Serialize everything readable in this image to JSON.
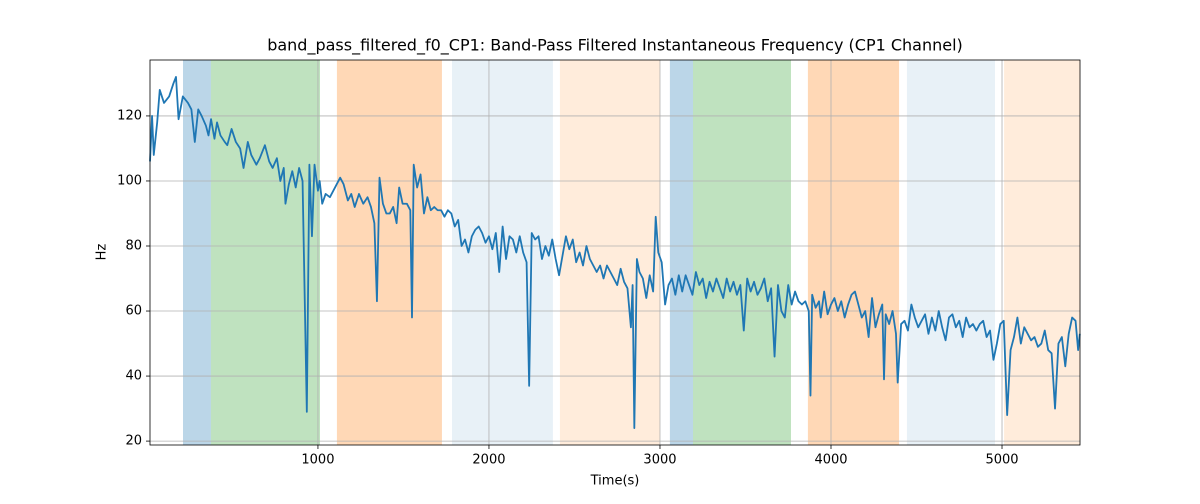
{
  "chart_data": {
    "type": "line",
    "title": "band_pass_filtered_f0_CP1: Band-Pass Filtered Instantaneous Frequency (CP1 Channel)",
    "xlabel": "Time(s)",
    "ylabel": "Hz",
    "xlim": [
      18,
      5456
    ],
    "ylim": [
      18.8,
      137.2
    ],
    "xticks": [
      1000,
      2000,
      3000,
      4000,
      5000
    ],
    "yticks": [
      20,
      40,
      60,
      80,
      100,
      120
    ],
    "grid": true,
    "color": "#1f77b4",
    "spans": [
      {
        "start": 211,
        "end": 374,
        "color": "#1f77b4",
        "opacity": 0.3
      },
      {
        "start": 374,
        "end": 1012,
        "color": "#2ca02c",
        "opacity": 0.3
      },
      {
        "start": 1111,
        "end": 1725,
        "color": "#ff7f0e",
        "opacity": 0.3
      },
      {
        "start": 1784,
        "end": 2374,
        "color": "#1f77b4",
        "opacity": 0.1
      },
      {
        "start": 2415,
        "end": 3000,
        "color": "#ff7f0e",
        "opacity": 0.15
      },
      {
        "start": 3058,
        "end": 3193,
        "color": "#1f77b4",
        "opacity": 0.3
      },
      {
        "start": 3193,
        "end": 3766,
        "color": "#2ca02c",
        "opacity": 0.3
      },
      {
        "start": 3865,
        "end": 4398,
        "color": "#ff7f0e",
        "opacity": 0.3
      },
      {
        "start": 4444,
        "end": 4959,
        "color": "#1f77b4",
        "opacity": 0.1
      },
      {
        "start": 5012,
        "end": 5456,
        "color": "#ff7f0e",
        "opacity": 0.15
      }
    ],
    "x": [
      18,
      30,
      40,
      60,
      75,
      100,
      130,
      155,
      170,
      185,
      210,
      240,
      260,
      280,
      300,
      320,
      345,
      360,
      375,
      395,
      410,
      430,
      455,
      470,
      495,
      520,
      545,
      565,
      590,
      610,
      640,
      660,
      690,
      715,
      735,
      760,
      780,
      800,
      810,
      830,
      850,
      870,
      890,
      910,
      935,
      950,
      965,
      980,
      1000,
      1010,
      1025,
      1045,
      1070,
      1090,
      1110,
      1130,
      1150,
      1175,
      1195,
      1215,
      1240,
      1265,
      1290,
      1310,
      1330,
      1345,
      1360,
      1380,
      1400,
      1420,
      1440,
      1460,
      1475,
      1495,
      1520,
      1540,
      1550,
      1560,
      1580,
      1600,
      1620,
      1640,
      1660,
      1680,
      1700,
      1720,
      1740,
      1760,
      1780,
      1800,
      1820,
      1840,
      1860,
      1880,
      1900,
      1920,
      1940,
      1960,
      1980,
      2000,
      2020,
      2040,
      2060,
      2080,
      2100,
      2120,
      2140,
      2160,
      2180,
      2200,
      2220,
      2235,
      2250,
      2270,
      2290,
      2310,
      2330,
      2350,
      2370,
      2390,
      2410,
      2430,
      2450,
      2470,
      2490,
      2510,
      2530,
      2550,
      2570,
      2590,
      2610,
      2630,
      2650,
      2670,
      2690,
      2710,
      2730,
      2750,
      2770,
      2790,
      2810,
      2830,
      2840,
      2850,
      2865,
      2880,
      2900,
      2920,
      2940,
      2960,
      2975,
      2990,
      3010,
      3030,
      3050,
      3070,
      3090,
      3110,
      3130,
      3150,
      3170,
      3190,
      3210,
      3230,
      3250,
      3270,
      3290,
      3310,
      3330,
      3350,
      3370,
      3390,
      3410,
      3430,
      3450,
      3470,
      3490,
      3510,
      3530,
      3550,
      3570,
      3590,
      3610,
      3630,
      3650,
      3670,
      3690,
      3710,
      3730,
      3750,
      3770,
      3790,
      3810,
      3830,
      3850,
      3870,
      3880,
      3890,
      3910,
      3930,
      3940,
      3960,
      3980,
      4000,
      4020,
      4040,
      4060,
      4080,
      4100,
      4120,
      4140,
      4160,
      4180,
      4200,
      4220,
      4240,
      4260,
      4280,
      4300,
      4310,
      4320,
      4340,
      4360,
      4380,
      4390,
      4410,
      4430,
      4450,
      4470,
      4490,
      4510,
      4530,
      4550,
      4570,
      4590,
      4610,
      4630,
      4650,
      4670,
      4690,
      4710,
      4730,
      4750,
      4770,
      4790,
      4810,
      4830,
      4850,
      4870,
      4890,
      4910,
      4930,
      4950,
      4970,
      4990,
      5010,
      5030,
      5050,
      5070,
      5090,
      5110,
      5130,
      5150,
      5170,
      5190,
      5210,
      5230,
      5250,
      5270,
      5290,
      5310,
      5330,
      5350,
      5370,
      5390,
      5410,
      5430,
      5445,
      5455
    ],
    "values": [
      106,
      120,
      108,
      118,
      128,
      124,
      126,
      130,
      132,
      119,
      126,
      124,
      122,
      112,
      122,
      120,
      117,
      114,
      119,
      113,
      118,
      114,
      112,
      111,
      116,
      112,
      110,
      104,
      112,
      108,
      105,
      107,
      111,
      106,
      104,
      107,
      100,
      104,
      93,
      99,
      103,
      98,
      104,
      100,
      29,
      105,
      83,
      105,
      97,
      100,
      93,
      96,
      95,
      97,
      99,
      101,
      99,
      94,
      96,
      92,
      96,
      93,
      95,
      92,
      87,
      63,
      101,
      93,
      90,
      90,
      92,
      87,
      98,
      93,
      93,
      91,
      58,
      105,
      98,
      102,
      90,
      95,
      91,
      92,
      91,
      91,
      89,
      91,
      90,
      86,
      88,
      80,
      82,
      78,
      83,
      85,
      86,
      84,
      81,
      83,
      79,
      84,
      72,
      86,
      76,
      83,
      82,
      78,
      83,
      78,
      75,
      37,
      84,
      82,
      83,
      76,
      80,
      77,
      82,
      76,
      71,
      77,
      83,
      79,
      82,
      75,
      78,
      74,
      80,
      76,
      74,
      72,
      74,
      70,
      74,
      72,
      70,
      68,
      73,
      69,
      67,
      55,
      68,
      24,
      76,
      72,
      70,
      64,
      71,
      66,
      89,
      78,
      75,
      62,
      68,
      70,
      65,
      71,
      66,
      71,
      68,
      65,
      72,
      68,
      70,
      64,
      69,
      66,
      70,
      67,
      64,
      70,
      66,
      69,
      65,
      68,
      54,
      70,
      66,
      69,
      65,
      67,
      70,
      63,
      67,
      46,
      68,
      60,
      58,
      68,
      62,
      66,
      63,
      62,
      63,
      60,
      34,
      65,
      61,
      63,
      58,
      66,
      59,
      62,
      64,
      60,
      63,
      58,
      62,
      65,
      66,
      62,
      58,
      60,
      52,
      64,
      55,
      59,
      62,
      39,
      59,
      56,
      60,
      53,
      38,
      56,
      57,
      54,
      62,
      58,
      55,
      57,
      59,
      53,
      58,
      54,
      60,
      55,
      51,
      58,
      59,
      55,
      57,
      52,
      58,
      55,
      56,
      54,
      56,
      57,
      52,
      54,
      45,
      50,
      56,
      57,
      28,
      48,
      52,
      58,
      50,
      55,
      53,
      51,
      52,
      49,
      50,
      54,
      48,
      47,
      30,
      50,
      52,
      43,
      53,
      58,
      57,
      48,
      53
    ]
  }
}
